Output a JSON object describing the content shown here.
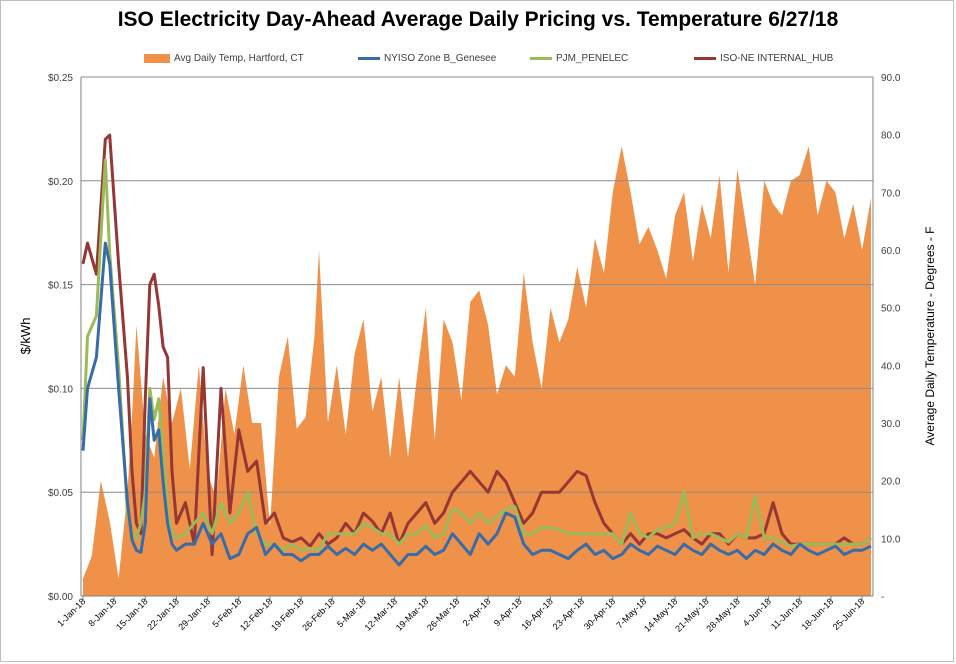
{
  "chart_data": {
    "type": "line",
    "title": "ISO Electricity Day-Ahead Average Daily Pricing vs. Temperature 6/27/18",
    "ylabel": "$/kWh",
    "y2label": "Average Daily Temperature - Degrees - F",
    "ylim": [
      0,
      0.25
    ],
    "y2lim": [
      0,
      90
    ],
    "yticks": [
      "$0.00",
      "$0.05",
      "$0.10",
      "$0.15",
      "$0.20",
      "$0.25"
    ],
    "y2ticks": [
      "-",
      "10.0",
      "20.0",
      "30.0",
      "40.0",
      "50.0",
      "60.0",
      "70.0",
      "80.0",
      "90.0"
    ],
    "xticks": [
      "1-Jan-18",
      "8-Jan-18",
      "15-Jan-18",
      "22-Jan-18",
      "29-Jan-18",
      "5-Feb-18",
      "12-Feb-18",
      "19-Feb-18",
      "26-Feb-18",
      "5-Mar-18",
      "12-Mar-18",
      "19-Mar-18",
      "26-Mar-18",
      "2-Apr-18",
      "9-Apr-18",
      "16-Apr-18",
      "23-Apr-18",
      "30-Apr-18",
      "7-May-18",
      "14-May-18",
      "21-May-18",
      "28-May-18",
      "4-Jun-18",
      "11-Jun-18",
      "18-Jun-18",
      "25-Jun-18"
    ],
    "grid": true,
    "legend_position": "top",
    "series": [
      {
        "name": "Avg Daily Temp, Hartford, CT",
        "kind": "area",
        "axis": "right",
        "color": "#f0914a",
        "x": [
          0,
          2,
          4,
          6,
          8,
          10,
          11,
          12,
          14,
          16,
          18,
          20,
          22,
          24,
          26,
          28,
          30,
          32,
          34,
          36,
          38,
          40,
          42,
          44,
          46,
          48,
          50,
          52,
          53,
          55,
          57,
          59,
          61,
          63,
          65,
          67,
          69,
          71,
          73,
          75,
          77,
          79,
          81,
          83,
          85,
          87,
          89,
          91,
          93,
          95,
          97,
          99,
          101,
          103,
          105,
          107,
          109,
          111,
          113,
          115,
          117,
          119,
          121,
          123,
          125,
          127,
          129,
          131,
          133,
          135,
          137,
          139,
          141,
          143,
          145,
          147,
          149,
          151,
          153,
          155,
          157,
          159,
          161,
          163,
          165,
          167,
          169,
          171,
          173,
          175,
          177
        ],
        "values": [
          3,
          7,
          20,
          13,
          3,
          18,
          31,
          47,
          28,
          24,
          38,
          30,
          36,
          22,
          40,
          21,
          17,
          36,
          28,
          40,
          30,
          30,
          12,
          38,
          45,
          29,
          31,
          45,
          60,
          30,
          40,
          28,
          42,
          48,
          32,
          38,
          24,
          38,
          24,
          38,
          50,
          27,
          48,
          44,
          34,
          51,
          53,
          47,
          35,
          40,
          38,
          56,
          44,
          36,
          50,
          44,
          48,
          57,
          50,
          62,
          56,
          70,
          78,
          70,
          61,
          64,
          60,
          55,
          66,
          70,
          58,
          68,
          62,
          73,
          56,
          74,
          64,
          54,
          72,
          68,
          66,
          72,
          73,
          78,
          66,
          72,
          70,
          62,
          68,
          60,
          69
        ],
        "note": "temperature in degrees F, sampled by day index from 1-Jan-18"
      },
      {
        "name": "NYISO Zone B_Genesee",
        "kind": "line",
        "axis": "left",
        "color": "#386ca8",
        "x": [
          0,
          1,
          3,
          5,
          6,
          8,
          10,
          11,
          12,
          13,
          14,
          15,
          16,
          17,
          18,
          19,
          20,
          21,
          23,
          25,
          27,
          29,
          31,
          33,
          35,
          37,
          39,
          41,
          43,
          45,
          47,
          49,
          51,
          53,
          55,
          57,
          59,
          61,
          63,
          65,
          67,
          69,
          71,
          73,
          75,
          77,
          79,
          81,
          83,
          85,
          87,
          89,
          91,
          93,
          95,
          97,
          99,
          101,
          103,
          105,
          107,
          109,
          111,
          113,
          115,
          117,
          119,
          121,
          123,
          125,
          127,
          129,
          131,
          133,
          135,
          137,
          139,
          141,
          143,
          145,
          147,
          149,
          151,
          153,
          155,
          157,
          159,
          161,
          163,
          165,
          167,
          169,
          171,
          173,
          175,
          177
        ],
        "values": [
          0.07,
          0.1,
          0.115,
          0.17,
          0.16,
          0.1,
          0.045,
          0.027,
          0.022,
          0.021,
          0.035,
          0.095,
          0.075,
          0.08,
          0.055,
          0.035,
          0.025,
          0.022,
          0.025,
          0.025,
          0.035,
          0.025,
          0.03,
          0.018,
          0.02,
          0.03,
          0.033,
          0.02,
          0.025,
          0.02,
          0.02,
          0.017,
          0.02,
          0.02,
          0.024,
          0.02,
          0.023,
          0.02,
          0.025,
          0.022,
          0.025,
          0.02,
          0.015,
          0.02,
          0.02,
          0.024,
          0.02,
          0.022,
          0.03,
          0.025,
          0.02,
          0.03,
          0.025,
          0.03,
          0.04,
          0.038,
          0.025,
          0.02,
          0.022,
          0.022,
          0.02,
          0.018,
          0.022,
          0.025,
          0.02,
          0.022,
          0.018,
          0.02,
          0.025,
          0.022,
          0.02,
          0.024,
          0.022,
          0.02,
          0.025,
          0.022,
          0.02,
          0.025,
          0.022,
          0.02,
          0.022,
          0.018,
          0.022,
          0.02,
          0.025,
          0.022,
          0.02,
          0.025,
          0.022,
          0.02,
          0.022,
          0.024,
          0.02,
          0.022,
          0.022,
          0.024
        ]
      },
      {
        "name": "PJM_PENELEC",
        "kind": "line",
        "axis": "left",
        "color": "#9bbb59",
        "x": [
          0,
          1,
          3,
          5,
          6,
          8,
          10,
          11,
          12,
          13,
          14,
          15,
          16,
          17,
          18,
          19,
          20,
          21,
          23,
          25,
          27,
          29,
          31,
          33,
          35,
          37,
          39,
          41,
          43,
          45,
          47,
          49,
          51,
          53,
          55,
          57,
          59,
          61,
          63,
          65,
          67,
          69,
          71,
          73,
          75,
          77,
          79,
          81,
          83,
          85,
          87,
          89,
          91,
          93,
          95,
          97,
          99,
          101,
          103,
          105,
          107,
          109,
          111,
          113,
          115,
          117,
          119,
          121,
          123,
          125,
          127,
          129,
          131,
          133,
          135,
          137,
          139,
          141,
          143,
          145,
          147,
          149,
          151,
          153,
          155,
          157,
          159,
          161,
          163,
          165,
          167,
          169,
          171,
          173,
          175,
          177
        ],
        "values": [
          0.075,
          0.125,
          0.135,
          0.21,
          0.165,
          0.11,
          0.04,
          0.03,
          0.028,
          0.035,
          0.05,
          0.1,
          0.085,
          0.095,
          0.07,
          0.04,
          0.03,
          0.028,
          0.03,
          0.035,
          0.04,
          0.03,
          0.045,
          0.035,
          0.04,
          0.05,
          0.03,
          0.025,
          0.025,
          0.022,
          0.025,
          0.022,
          0.023,
          0.022,
          0.03,
          0.03,
          0.03,
          0.03,
          0.035,
          0.033,
          0.03,
          0.03,
          0.025,
          0.03,
          0.03,
          0.034,
          0.028,
          0.03,
          0.042,
          0.04,
          0.035,
          0.04,
          0.035,
          0.038,
          0.042,
          0.043,
          0.03,
          0.03,
          0.033,
          0.033,
          0.032,
          0.03,
          0.03,
          0.03,
          0.03,
          0.03,
          0.03,
          0.025,
          0.04,
          0.03,
          0.028,
          0.032,
          0.033,
          0.035,
          0.05,
          0.028,
          0.03,
          0.03,
          0.028,
          0.026,
          0.03,
          0.028,
          0.048,
          0.028,
          0.028,
          0.026,
          0.024,
          0.025,
          0.025,
          0.025,
          0.025,
          0.025,
          0.025,
          0.025,
          0.025,
          0.028
        ]
      },
      {
        "name": "ISO-NE INTERNAL_HUB",
        "kind": "line",
        "axis": "left",
        "color": "#953735",
        "x": [
          0,
          1,
          3,
          5,
          6,
          8,
          10,
          11,
          12,
          13,
          14,
          15,
          16,
          17,
          18,
          19,
          20,
          21,
          23,
          25,
          27,
          29,
          31,
          33,
          35,
          37,
          39,
          41,
          43,
          45,
          47,
          49,
          51,
          53,
          55,
          57,
          59,
          61,
          63,
          65,
          67,
          69,
          71,
          73,
          75,
          77,
          79,
          81,
          83,
          85,
          87,
          89,
          91,
          93,
          95,
          97,
          99,
          101,
          103,
          105,
          107,
          109,
          111,
          113,
          115,
          117,
          119,
          121,
          123,
          125,
          127,
          129,
          131,
          133,
          135,
          137,
          139,
          141,
          143,
          145,
          147,
          149,
          151,
          153,
          155,
          157,
          159,
          161,
          163,
          165,
          167,
          169,
          171,
          173,
          175,
          177
        ],
        "values": [
          0.16,
          0.17,
          0.155,
          0.22,
          0.222,
          0.16,
          0.105,
          0.06,
          0.035,
          0.03,
          0.095,
          0.15,
          0.155,
          0.14,
          0.12,
          0.115,
          0.06,
          0.035,
          0.045,
          0.025,
          0.11,
          0.02,
          0.1,
          0.04,
          0.08,
          0.06,
          0.065,
          0.035,
          0.04,
          0.028,
          0.026,
          0.028,
          0.024,
          0.03,
          0.025,
          0.028,
          0.035,
          0.03,
          0.04,
          0.036,
          0.03,
          0.04,
          0.025,
          0.035,
          0.04,
          0.045,
          0.035,
          0.04,
          0.05,
          0.055,
          0.06,
          0.055,
          0.05,
          0.06,
          0.055,
          0.045,
          0.035,
          0.04,
          0.05,
          0.05,
          0.05,
          0.055,
          0.06,
          0.058,
          0.045,
          0.035,
          0.03,
          0.025,
          0.03,
          0.025,
          0.03,
          0.03,
          0.028,
          0.03,
          0.032,
          0.028,
          0.025,
          0.03,
          0.03,
          0.025,
          0.03,
          0.028,
          0.028,
          0.03,
          0.045,
          0.03,
          0.025,
          0.025,
          0.025,
          0.025,
          0.025,
          0.025,
          0.028,
          0.025,
          0.025,
          0.028
        ]
      }
    ]
  }
}
